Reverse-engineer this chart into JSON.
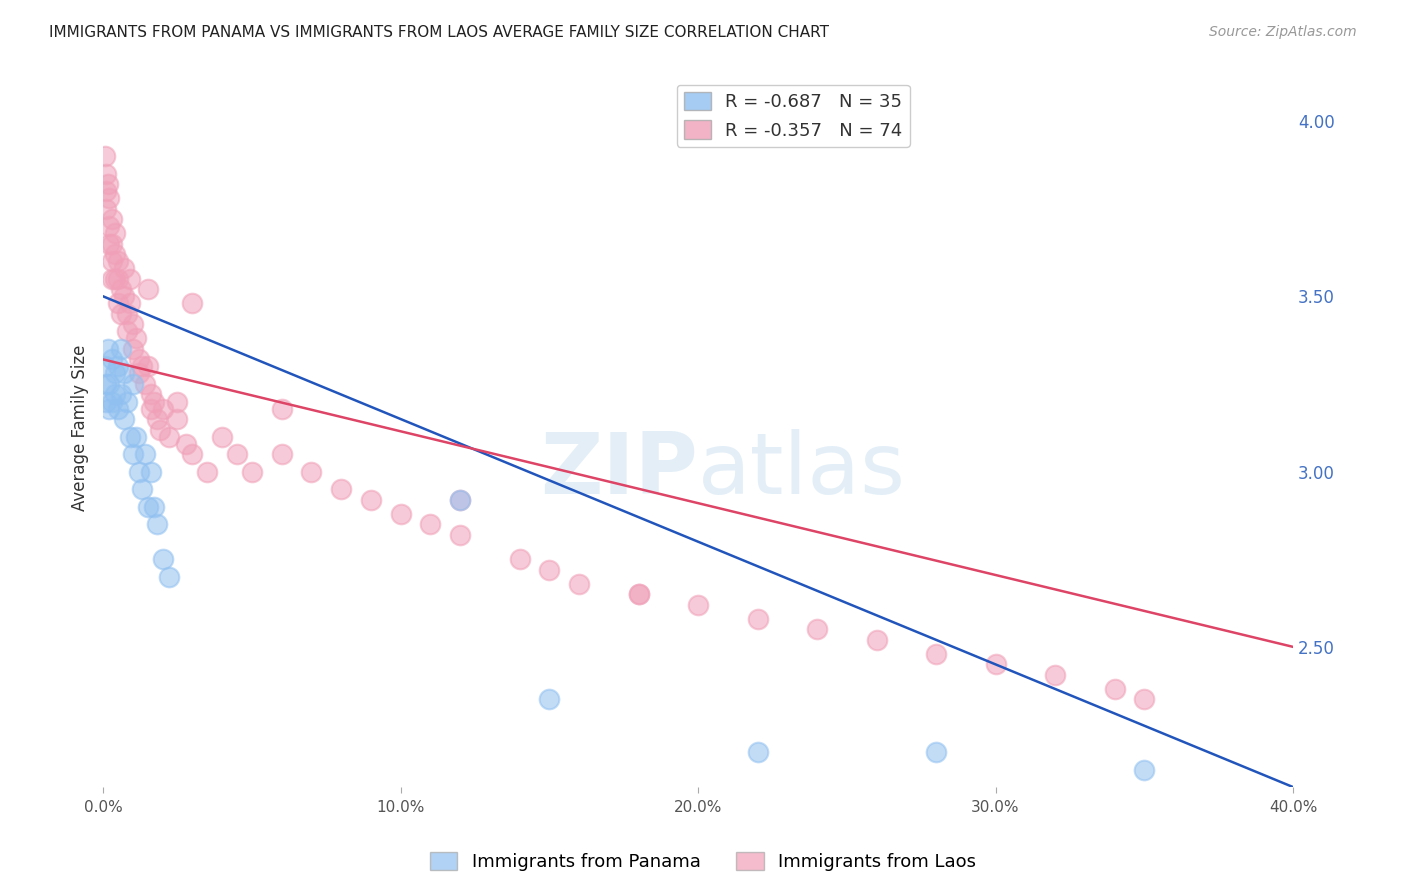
{
  "title": "IMMIGRANTS FROM PANAMA VS IMMIGRANTS FROM LAOS AVERAGE FAMILY SIZE CORRELATION CHART",
  "source": "Source: ZipAtlas.com",
  "ylabel": "Average Family Size",
  "xlim": [
    0.0,
    0.4
  ],
  "ylim": [
    2.1,
    4.15
  ],
  "yticks": [
    2.5,
    3.0,
    3.5,
    4.0
  ],
  "xticks": [
    0.0,
    0.1,
    0.2,
    0.3,
    0.4
  ],
  "xtick_labels": [
    "0.0%",
    "10.0%",
    "20.0%",
    "30.0%",
    "40.0%"
  ],
  "background_color": "#ffffff",
  "grid_color": "#dddddd",
  "panama_color": "#90c0f0",
  "laos_color": "#f0a0b8",
  "panama_line_color": "#2255bb",
  "laos_line_color": "#dd4466",
  "panama_R": -0.687,
  "panama_N": 35,
  "laos_R": -0.357,
  "laos_N": 74,
  "panama_x": [
    0.0005,
    0.001,
    0.001,
    0.0015,
    0.002,
    0.002,
    0.003,
    0.003,
    0.004,
    0.004,
    0.005,
    0.005,
    0.006,
    0.006,
    0.007,
    0.007,
    0.008,
    0.009,
    0.01,
    0.01,
    0.011,
    0.012,
    0.013,
    0.014,
    0.015,
    0.016,
    0.017,
    0.018,
    0.02,
    0.022,
    0.12,
    0.15,
    0.22,
    0.28,
    0.35
  ],
  "panama_y": [
    3.3,
    3.25,
    3.2,
    3.35,
    3.25,
    3.18,
    3.32,
    3.2,
    3.28,
    3.22,
    3.3,
    3.18,
    3.35,
    3.22,
    3.28,
    3.15,
    3.2,
    3.1,
    3.25,
    3.05,
    3.1,
    3.0,
    2.95,
    3.05,
    2.9,
    3.0,
    2.9,
    2.85,
    2.75,
    2.7,
    2.92,
    2.35,
    2.2,
    2.2,
    2.15
  ],
  "laos_x": [
    0.0005,
    0.001,
    0.001,
    0.001,
    0.0015,
    0.002,
    0.002,
    0.002,
    0.003,
    0.003,
    0.003,
    0.003,
    0.004,
    0.004,
    0.004,
    0.005,
    0.005,
    0.005,
    0.006,
    0.006,
    0.007,
    0.007,
    0.008,
    0.008,
    0.009,
    0.009,
    0.01,
    0.01,
    0.011,
    0.012,
    0.012,
    0.013,
    0.014,
    0.015,
    0.016,
    0.016,
    0.017,
    0.018,
    0.019,
    0.02,
    0.022,
    0.025,
    0.028,
    0.03,
    0.035,
    0.04,
    0.045,
    0.05,
    0.06,
    0.07,
    0.08,
    0.09,
    0.1,
    0.11,
    0.12,
    0.14,
    0.15,
    0.16,
    0.18,
    0.2,
    0.22,
    0.24,
    0.26,
    0.28,
    0.3,
    0.32,
    0.34,
    0.35,
    0.03,
    0.06,
    0.12,
    0.18,
    0.015,
    0.025
  ],
  "laos_y": [
    3.9,
    3.85,
    3.8,
    3.75,
    3.82,
    3.78,
    3.7,
    3.65,
    3.72,
    3.65,
    3.6,
    3.55,
    3.68,
    3.62,
    3.55,
    3.6,
    3.55,
    3.48,
    3.52,
    3.45,
    3.58,
    3.5,
    3.45,
    3.4,
    3.55,
    3.48,
    3.42,
    3.35,
    3.38,
    3.32,
    3.28,
    3.3,
    3.25,
    3.3,
    3.22,
    3.18,
    3.2,
    3.15,
    3.12,
    3.18,
    3.1,
    3.15,
    3.08,
    3.05,
    3.0,
    3.1,
    3.05,
    3.0,
    3.05,
    3.0,
    2.95,
    2.92,
    2.88,
    2.85,
    2.82,
    2.75,
    2.72,
    2.68,
    2.65,
    2.62,
    2.58,
    2.55,
    2.52,
    2.48,
    2.45,
    2.42,
    2.38,
    2.35,
    3.48,
    3.18,
    2.92,
    2.65,
    3.52,
    3.2
  ]
}
